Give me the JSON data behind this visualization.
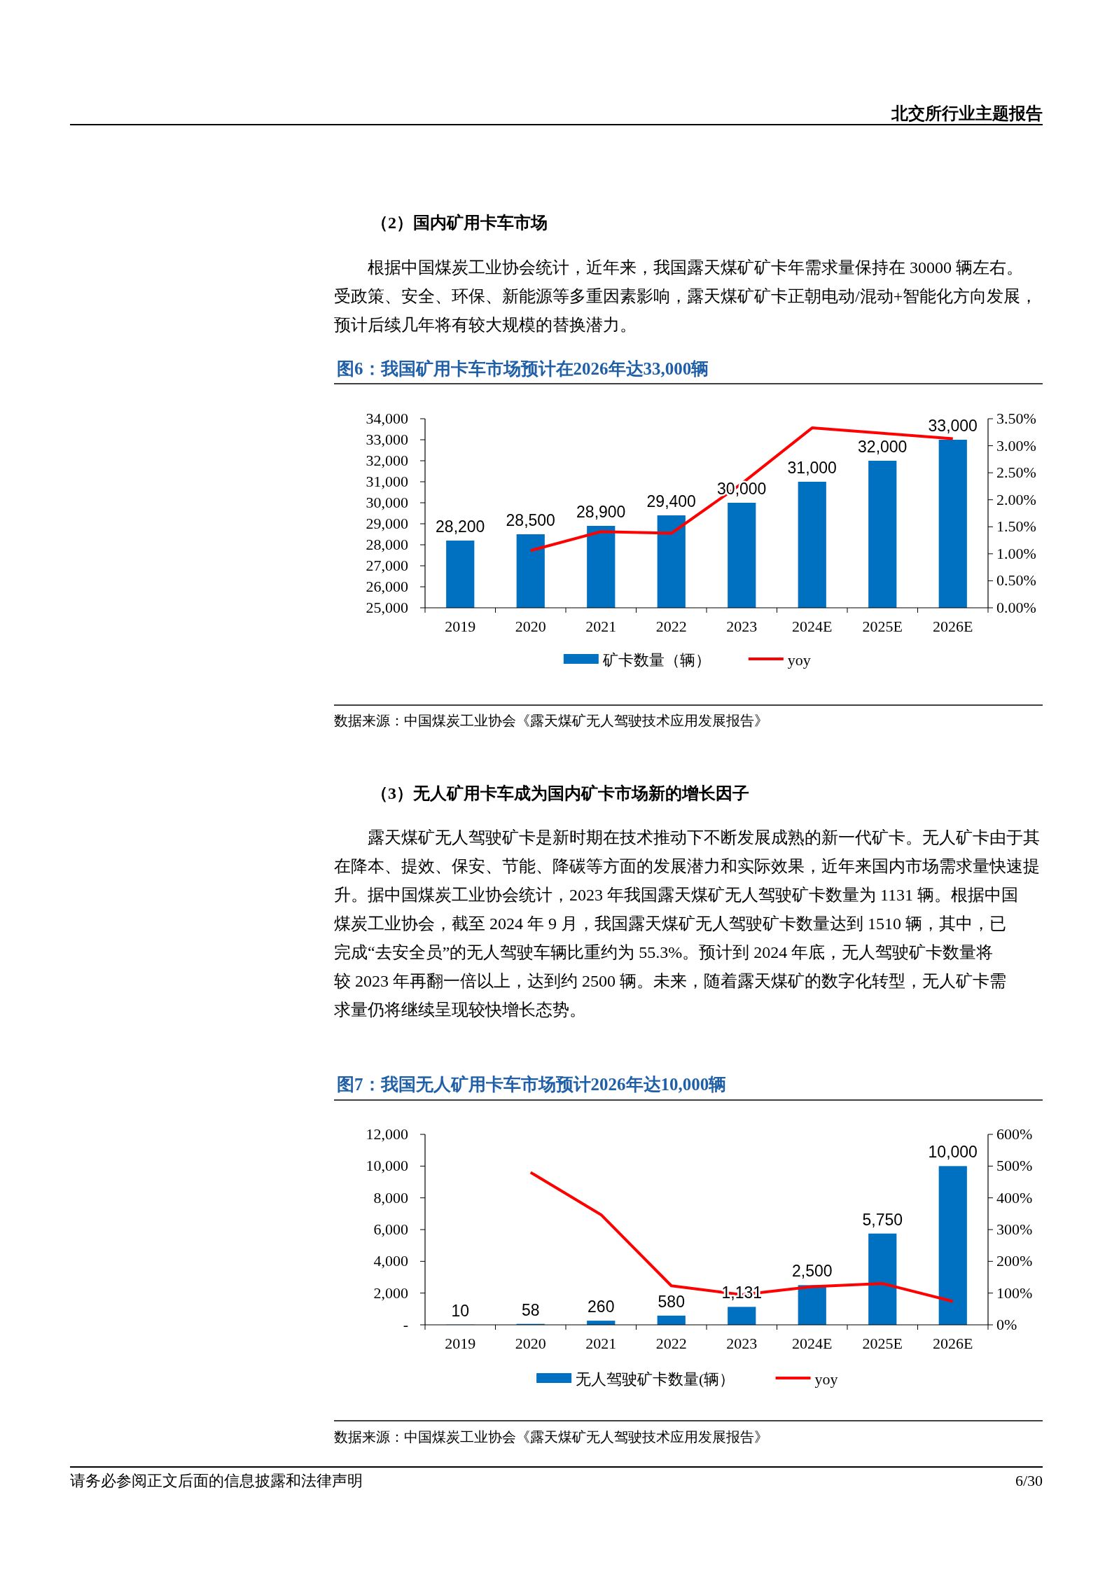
{
  "chart_data": [
    {
      "type": "bar",
      "title": "图6：我国矿用卡车市场预计在2026年达33,000辆",
      "annotations": [
        "北交所行业主题报告",
        "（2）国内矿用卡车市场",
        "根据中国煤炭工业协会统计，近年来，我国露天煤矿矿卡年需求量保持在 30000 辆左右。受政策、安全、环保、新能源等多重因素影响，露天煤矿矿卡正朝电动/混动+智能化方向发展，预计后续几年将有较大规模的替换潜力。",
        "数据来源：中国煤炭工业协会《露天煤矿无人驾驶技术应用发展报告》"
      ],
      "categories": [
        "2019",
        "2020",
        "2021",
        "2022",
        "2023",
        "2024E",
        "2025E",
        "2026E"
      ],
      "series": [
        {
          "name": "矿卡数量（辆）",
          "color": "#0070c0",
          "values": [
            28200,
            28500,
            28900,
            29400,
            30000,
            31000,
            32000,
            33000
          ],
          "value_labels": [
            "28,200",
            "28,500",
            "28,900",
            "29,400",
            "30,000",
            "31,000",
            "32,000",
            "33,000"
          ]
        },
        {
          "name": "yoy",
          "type": "line",
          "axis": "y2",
          "color": "#ff0000",
          "values": [
            null,
            1.06,
            1.41,
            1.38,
            2.3,
            3.33,
            3.23,
            3.13
          ]
        }
      ],
      "ylim": [
        25000,
        34000
      ],
      "yticks": [
        {
          "value": 25000,
          "label": "25,000"
        },
        {
          "value": 26000,
          "label": "26,000"
        },
        {
          "value": 27000,
          "label": "27,000"
        },
        {
          "value": 28000,
          "label": "28,000"
        },
        {
          "value": 29000,
          "label": "29,000"
        },
        {
          "value": 30000,
          "label": "30,000"
        },
        {
          "value": 31000,
          "label": "31,000"
        },
        {
          "value": 32000,
          "label": "32,000"
        },
        {
          "value": 33000,
          "label": "33,000"
        },
        {
          "value": 34000,
          "label": "34,000"
        }
      ],
      "y2lim": [
        0,
        3.5
      ],
      "y2ticks": [
        {
          "value": 0,
          "label": "0.00%"
        },
        {
          "value": 0.5,
          "label": "0.50%"
        },
        {
          "value": 1,
          "label": "1.00%"
        },
        {
          "value": 1.5,
          "label": "1.50%"
        },
        {
          "value": 2,
          "label": "2.00%"
        },
        {
          "value": 2.5,
          "label": "2.50%"
        },
        {
          "value": 3,
          "label": "3.00%"
        },
        {
          "value": 3.5,
          "label": "3.50%"
        }
      ],
      "legend": "bottom",
      "grid": false,
      "marker": "none"
    },
    {
      "type": "bar",
      "title": "图7：我国无人矿用卡车市场预计2026年达10,000辆",
      "annotations": [
        "（3）无人矿用卡车成为国内矿卡市场新的增长因子",
        "露天煤矿无人驾驶矿卡是新时期在技术推动下不断发展成熟的新一代矿卡。无人矿卡由于其在降本、提效、保安、节能、降碳等方面的发展潜力和实际效果，近年来国内市场需求量快速提升。据中国煤炭工业协会统计，2023 年我国露天煤矿无人驾驶矿卡数量为 1131 辆。根据中国煤炭工业协会，截至 2024 年 9 月，我国露天煤矿无人驾驶矿卡数量达到 1510 辆，其中，已完成“去安全员”的无人驾驶车辆比重约为 55.3%。预计到 2024 年底，无人驾驶矿卡数量将较 2023 年再翻一倍以上，达到约 2500 辆。未来，随着露天煤矿的数字化转型，无人矿卡需求量仍将继续呈现较快增长态势。",
        "数据来源：中国煤炭工业协会《露天煤矿无人驾驶技术应用发展报告》",
        "请务必参阅正文后面的信息披露和法律声明",
        "6/30"
      ],
      "categories": [
        "2019",
        "2020",
        "2021",
        "2022",
        "2023",
        "2024E",
        "2025E",
        "2026E"
      ],
      "series": [
        {
          "name": "无人驾驶矿卡数量(辆）",
          "color": "#0070c0",
          "values": [
            10,
            58,
            260,
            580,
            1131,
            2500,
            5750,
            10000
          ],
          "value_labels": [
            "10",
            "58",
            "260",
            "580",
            "1,131",
            "2,500",
            "5,750",
            "10,000"
          ]
        },
        {
          "name": "yoy",
          "type": "line",
          "axis": "y2",
          "color": "#ff0000",
          "values": [
            null,
            480,
            347,
            123,
            95,
            120,
            130,
            74
          ]
        }
      ],
      "ylim": [
        0,
        12000
      ],
      "yticks": [
        {
          "value": 0,
          "label": "-"
        },
        {
          "value": 2000,
          "label": "2,000"
        },
        {
          "value": 4000,
          "label": "4,000"
        },
        {
          "value": 6000,
          "label": "6,000"
        },
        {
          "value": 8000,
          "label": "8,000"
        },
        {
          "value": 10000,
          "label": "10,000"
        },
        {
          "value": 12000,
          "label": "12,000"
        }
      ],
      "y2lim": [
        0,
        600
      ],
      "y2ticks": [
        {
          "value": 0,
          "label": "0%"
        },
        {
          "value": 100,
          "label": "100%"
        },
        {
          "value": 200,
          "label": "200%"
        },
        {
          "value": 300,
          "label": "300%"
        },
        {
          "value": 400,
          "label": "400%"
        },
        {
          "value": 500,
          "label": "500%"
        },
        {
          "value": 600,
          "label": "600%"
        }
      ],
      "legend": "bottom",
      "grid": false,
      "marker": "none"
    }
  ]
}
